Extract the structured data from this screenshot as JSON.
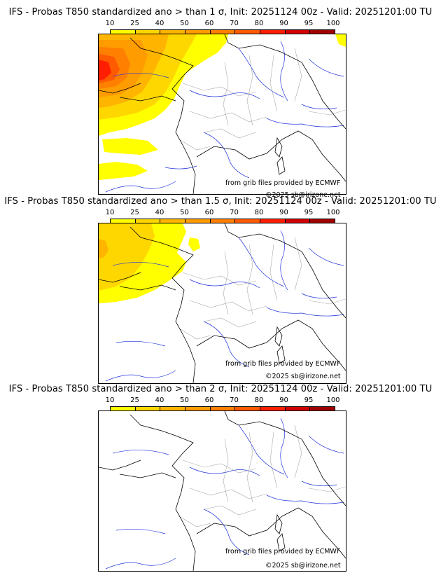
{
  "scale": {
    "labels": [
      "10",
      "25",
      "40",
      "50",
      "60",
      "70",
      "80",
      "90",
      "95",
      "100"
    ],
    "colors": [
      "#ffff00",
      "#ffd700",
      "#ffb400",
      "#ff9c00",
      "#ff7f00",
      "#ff5a00",
      "#ff1e00",
      "#d20000",
      "#a00000",
      "#6e0000"
    ]
  },
  "panels": [
    {
      "title": "IFS - Probas T850  standardized ano > than 1 σ, Init: 20251124 00z - Valid: 20251201:00 TU",
      "credit_source": "from grib files provided by ECMWF",
      "credit_copyright": "©2025 sb@irizone.net"
    },
    {
      "title": "IFS - Probas T850  standardized ano > than 1.5 σ, Init: 20251124 00z - Valid: 20251201:00 TU",
      "credit_source": "from grib files provided by ECMWF",
      "credit_copyright": "©2025 sb@irizone.net"
    },
    {
      "title": "IFS - Probas T850  standardized ano > than 2 σ, Init: 20251124 00z - Valid: 20251201:00 TU",
      "credit_source": "from grib files provided by ECMWF",
      "credit_copyright": "©2025 sb@irizone.net"
    }
  ]
}
